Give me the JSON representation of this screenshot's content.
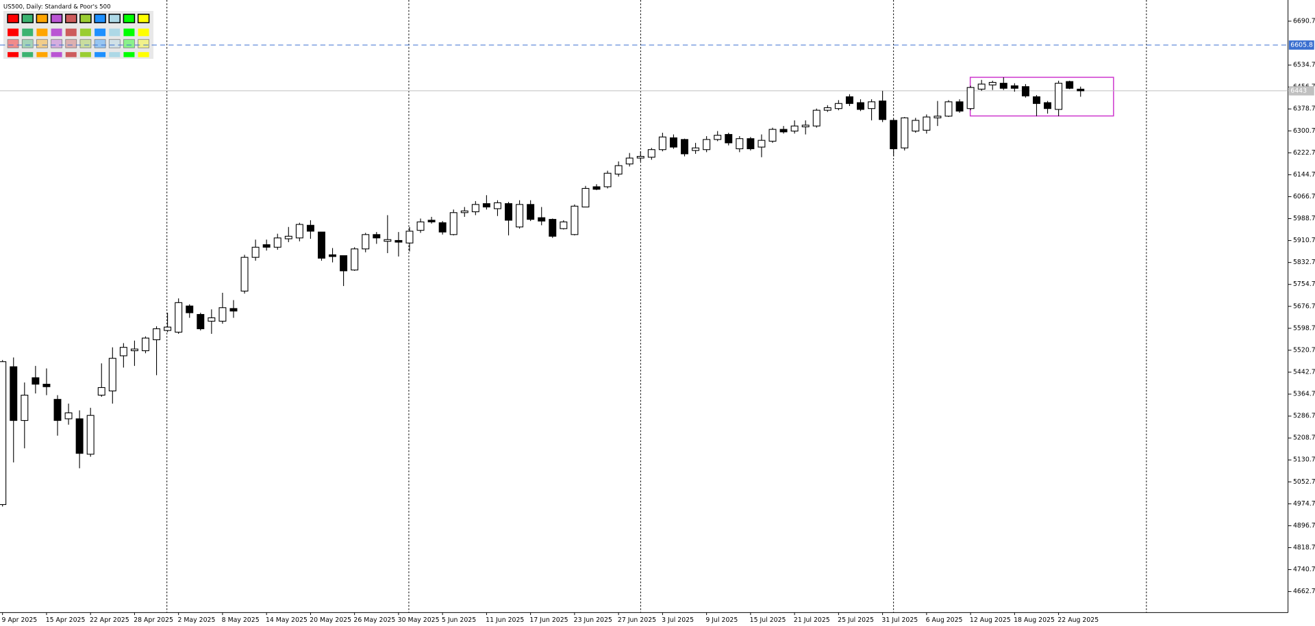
{
  "chart_data": {
    "type": "candlestick",
    "title": "US500, Daily:  Standard & Poor's 500",
    "categories": [
      "9 Apr 2025",
      null,
      null,
      null,
      "15 Apr 2025",
      null,
      null,
      null,
      "22 Apr 2025",
      null,
      null,
      null,
      "28 Apr 2025",
      null,
      null,
      null,
      "2 May 2025",
      null,
      null,
      null,
      "8 May 2025",
      null,
      null,
      null,
      "14 May 2025",
      null,
      null,
      null,
      "20 May 2025",
      null,
      null,
      null,
      "26 May 2025",
      null,
      null,
      null,
      "30 May 2025",
      null,
      null,
      null,
      "5 Jun 2025",
      null,
      null,
      null,
      "11 Jun 2025",
      null,
      null,
      null,
      "17 Jun 2025",
      null,
      null,
      null,
      "23 Jun 2025",
      null,
      null,
      null,
      "27 Jun 2025",
      null,
      null,
      null,
      "3 Jul 2025",
      null,
      null,
      null,
      "9 Jul 2025",
      null,
      null,
      null,
      "15 Jul 2025",
      null,
      null,
      null,
      "21 Jul 2025",
      null,
      null,
      null,
      "25 Jul 2025",
      null,
      null,
      null,
      "31 Jul 2025",
      null,
      null,
      null,
      "6 Aug 2025",
      null,
      null,
      null,
      "12 Aug 2025",
      null,
      null,
      null,
      "18 Aug 2025",
      null,
      null,
      null,
      "22 Aug 2025",
      null,
      null
    ],
    "open": [
      4972,
      5462,
      5271,
      5423,
      5400,
      5346,
      5277,
      5277,
      5151,
      5361,
      5376,
      5501,
      5519,
      5519,
      5558,
      5591,
      5585,
      5678,
      5648,
      5624,
      5624,
      5669,
      5731,
      5851,
      5896,
      5887,
      5917,
      5920,
      5965,
      5941,
      5860,
      5857,
      5806,
      5881,
      5932,
      5908,
      5911,
      5902,
      5947,
      5983,
      5974,
      5932,
      6010,
      6013,
      6042,
      6024,
      6042,
      5959,
      6039,
      5992,
      5986,
      5953,
      5932,
      6030,
      6102,
      6102,
      6147,
      6183,
      6204,
      6207,
      6234,
      6276,
      6270,
      6231,
      6234,
      6270,
      6288,
      6237,
      6273,
      6243,
      6264,
      6306,
      6300,
      6315,
      6318,
      6374,
      6380,
      6422,
      6401,
      6380,
      6407,
      6338,
      6240,
      6300,
      6303,
      6347,
      6353,
      6404,
      6380,
      6449,
      6464,
      6470,
      6461,
      6458,
      6422,
      6401,
      6377,
      6476,
      6449
    ],
    "high": [
      5486,
      5495,
      5406,
      5465,
      5456,
      5361,
      5331,
      5307,
      5316,
      5474,
      5531,
      5546,
      5555,
      5570,
      5606,
      5654,
      5705,
      5684,
      5654,
      5666,
      5725,
      5699,
      5860,
      5914,
      5914,
      5935,
      5959,
      5974,
      5983,
      5941,
      5884,
      5857,
      5887,
      5938,
      5941,
      6001,
      5941,
      5959,
      5989,
      5995,
      5980,
      6021,
      6030,
      6051,
      6072,
      6054,
      6048,
      6054,
      6054,
      6030,
      5989,
      5983,
      6039,
      6105,
      6111,
      6159,
      6192,
      6222,
      6228,
      6240,
      6294,
      6288,
      6273,
      6258,
      6282,
      6300,
      6294,
      6282,
      6279,
      6288,
      6312,
      6318,
      6338,
      6338,
      6380,
      6392,
      6410,
      6431,
      6413,
      6413,
      6443,
      6344,
      6350,
      6347,
      6359,
      6407,
      6410,
      6413,
      6461,
      6482,
      6479,
      6491,
      6470,
      6467,
      6428,
      6407,
      6479,
      6479,
      6458
    ],
    "low": [
      4965,
      5122,
      5172,
      5367,
      5361,
      5217,
      5256,
      5101,
      5142,
      5355,
      5331,
      5459,
      5465,
      5510,
      5432,
      5585,
      5579,
      5636,
      5591,
      5579,
      5615,
      5636,
      5722,
      5839,
      5875,
      5878,
      5905,
      5908,
      5917,
      5839,
      5833,
      5749,
      5803,
      5869,
      5899,
      5866,
      5854,
      5872,
      5938,
      5971,
      5932,
      5929,
      5995,
      6001,
      6021,
      5998,
      5929,
      5953,
      5980,
      5965,
      5920,
      5950,
      5929,
      6030,
      6090,
      6096,
      6138,
      6174,
      6192,
      6198,
      6228,
      6237,
      6210,
      6219,
      6225,
      6264,
      6249,
      6225,
      6231,
      6207,
      6258,
      6291,
      6291,
      6288,
      6312,
      6368,
      6374,
      6389,
      6371,
      6338,
      6332,
      6210,
      6231,
      6294,
      6291,
      6318,
      6350,
      6365,
      6374,
      6443,
      6446,
      6446,
      6440,
      6419,
      6353,
      6362,
      6353,
      6449,
      6422
    ],
    "close": [
      5480,
      5271,
      5361,
      5400,
      5391,
      5271,
      5298,
      5154,
      5289,
      5388,
      5492,
      5531,
      5525,
      5564,
      5597,
      5603,
      5690,
      5654,
      5597,
      5636,
      5672,
      5660,
      5851,
      5887,
      5887,
      5920,
      5926,
      5968,
      5944,
      5848,
      5854,
      5803,
      5881,
      5932,
      5920,
      5914,
      5905,
      5944,
      5977,
      5977,
      5941,
      6010,
      6016,
      6039,
      6030,
      6045,
      5983,
      6039,
      5986,
      5980,
      5926,
      5977,
      6033,
      6096,
      6093,
      6150,
      6177,
      6204,
      6210,
      6234,
      6279,
      6243,
      6219,
      6240,
      6270,
      6285,
      6258,
      6273,
      6237,
      6267,
      6306,
      6297,
      6318,
      6321,
      6374,
      6383,
      6398,
      6398,
      6377,
      6404,
      6341,
      6237,
      6347,
      6338,
      6350,
      6353,
      6404,
      6371,
      6455,
      6467,
      6473,
      6452,
      6452,
      6425,
      6398,
      6380,
      6470,
      6452,
      6443
    ],
    "up_color": "#ffffff",
    "down_color": "#000000",
    "ylim": [
      4588,
      6766
    ],
    "yticks": [
      6690.7,
      6534.7,
      6456.7,
      6378.7,
      6300.7,
      6222.7,
      6144.7,
      6066.7,
      5988.7,
      5910.7,
      5832.7,
      5754.7,
      5676.7,
      5598.7,
      5520.7,
      5442.7,
      5364.7,
      5286.7,
      5208.7,
      5130.7,
      5052.7,
      4974.7,
      4896.7,
      4818.7,
      4740.7,
      4662.7
    ],
    "level": 6605.8,
    "level_color": "#3a6fd0"
  }
}
